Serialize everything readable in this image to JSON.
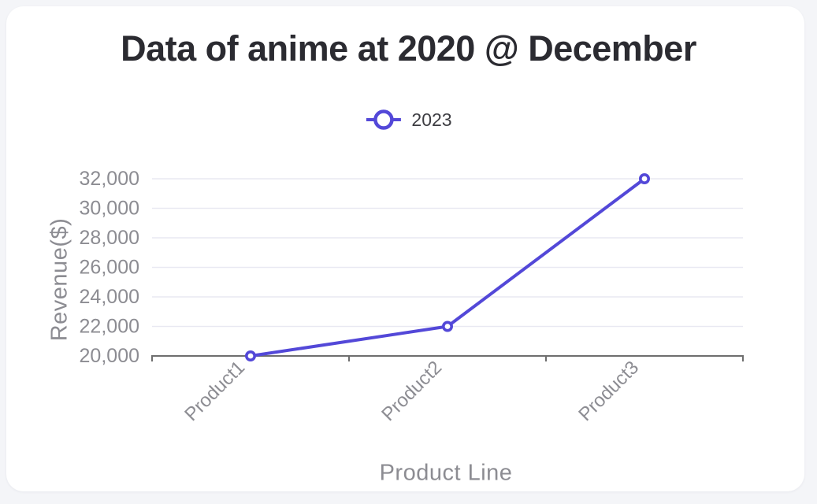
{
  "colors": {
    "accent": "#5348d8",
    "page_bg": "#f4f5f8",
    "card_bg": "#ffffff",
    "title_text": "#2b2b31",
    "legend_text": "#3d3d42",
    "axis_text": "#8c8c92",
    "axis_line": "#6e6e6e",
    "grid_line": "#e9e9f2"
  },
  "chart_data": {
    "type": "line",
    "title": "Data of anime at 2020 @ December",
    "categories": [
      "Product1",
      "Product2",
      "Product3"
    ],
    "series": [
      {
        "name": "2023",
        "values": [
          20000,
          22000,
          32000
        ]
      }
    ],
    "xlabel": "Product Line",
    "ylabel": "Revenue($)",
    "ylim": [
      20000,
      32000
    ],
    "y_ticks": [
      20000,
      22000,
      24000,
      26000,
      28000,
      30000,
      32000
    ],
    "y_tick_labels": [
      "20,000",
      "22,000",
      "24,000",
      "26,000",
      "28,000",
      "30,000",
      "32,000"
    ],
    "grid": true,
    "legend_position": "top",
    "marker_style": "hollow-circle"
  }
}
